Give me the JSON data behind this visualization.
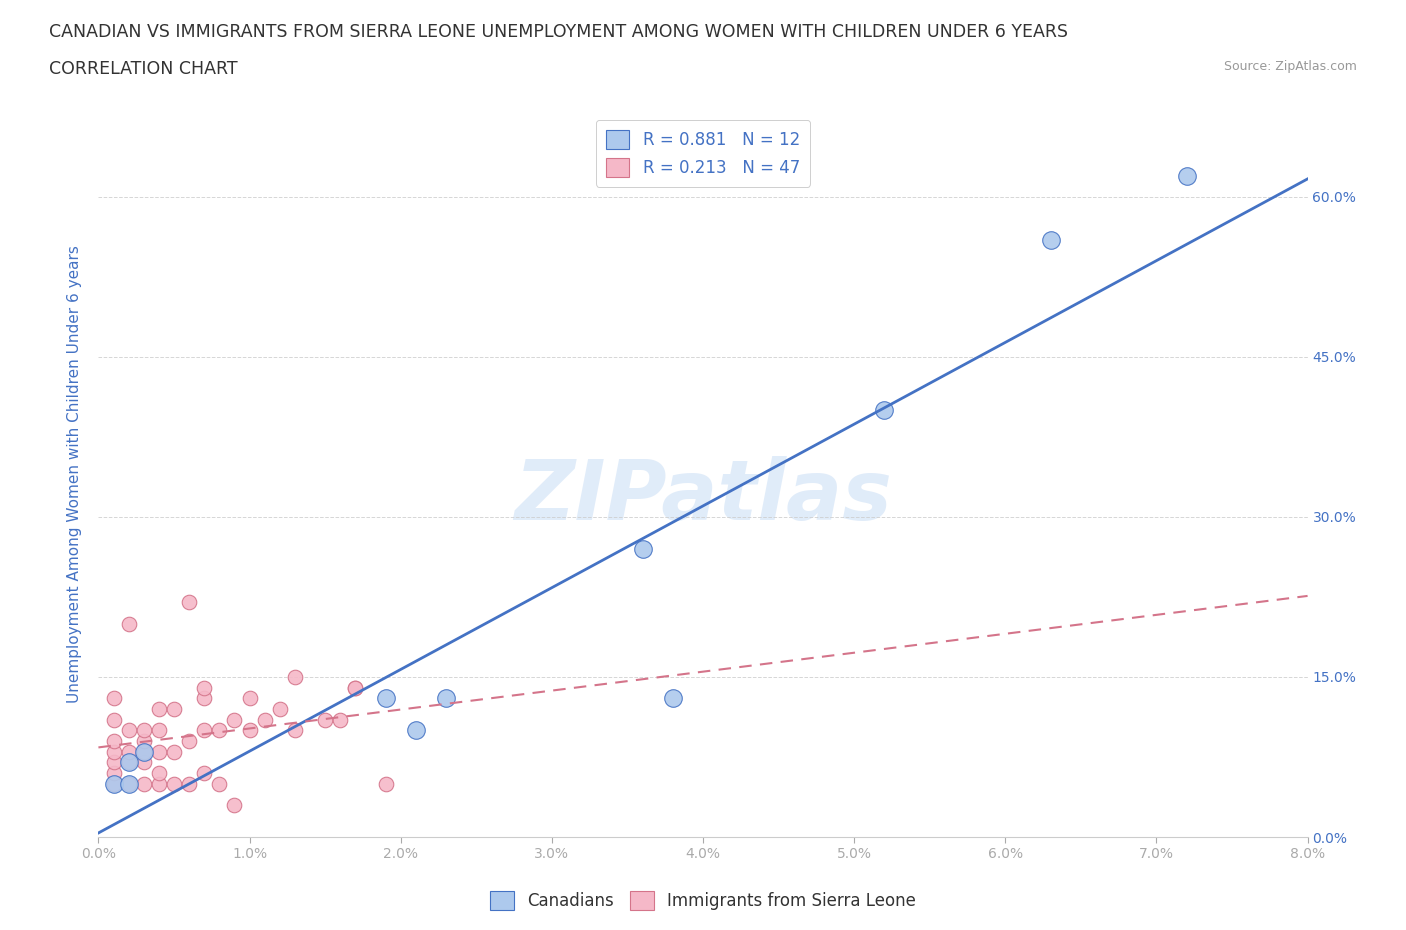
{
  "title_line1": "CANADIAN VS IMMIGRANTS FROM SIERRA LEONE UNEMPLOYMENT AMONG WOMEN WITH CHILDREN UNDER 6 YEARS",
  "title_line2": "CORRELATION CHART",
  "source": "Source: ZipAtlas.com",
  "ylabel": "Unemployment Among Women with Children Under 6 years",
  "watermark": "ZIPatlas",
  "canadians_R": 0.881,
  "canadians_N": 12,
  "sierraleoneans_R": 0.213,
  "sierraleoneans_N": 47,
  "canadians_color": "#adc9ed",
  "sierraleoneans_color": "#f5b8c8",
  "trendline_blue": "#4472c4",
  "trendline_pink": "#d4748a",
  "xlim": [
    0.0,
    0.08
  ],
  "ylim": [
    0.0,
    0.68
  ],
  "xticks": [
    0.0,
    0.01,
    0.02,
    0.03,
    0.04,
    0.05,
    0.06,
    0.07,
    0.08
  ],
  "yticks_right": [
    0.0,
    0.15,
    0.3,
    0.45,
    0.6
  ],
  "canadians_x": [
    0.001,
    0.002,
    0.002,
    0.003,
    0.019,
    0.021,
    0.023,
    0.036,
    0.038,
    0.052,
    0.063,
    0.072
  ],
  "canadians_y": [
    0.05,
    0.05,
    0.07,
    0.08,
    0.13,
    0.1,
    0.13,
    0.27,
    0.13,
    0.4,
    0.56,
    0.62
  ],
  "sierraleoneans_x": [
    0.001,
    0.001,
    0.001,
    0.001,
    0.001,
    0.001,
    0.001,
    0.002,
    0.002,
    0.002,
    0.002,
    0.002,
    0.003,
    0.003,
    0.003,
    0.003,
    0.003,
    0.004,
    0.004,
    0.004,
    0.004,
    0.004,
    0.005,
    0.005,
    0.005,
    0.006,
    0.006,
    0.006,
    0.007,
    0.007,
    0.007,
    0.007,
    0.008,
    0.008,
    0.009,
    0.009,
    0.01,
    0.01,
    0.011,
    0.012,
    0.013,
    0.013,
    0.015,
    0.016,
    0.017,
    0.017,
    0.019
  ],
  "sierraleoneans_y": [
    0.05,
    0.06,
    0.07,
    0.08,
    0.09,
    0.11,
    0.13,
    0.05,
    0.07,
    0.08,
    0.1,
    0.2,
    0.05,
    0.07,
    0.08,
    0.09,
    0.1,
    0.05,
    0.06,
    0.08,
    0.1,
    0.12,
    0.05,
    0.08,
    0.12,
    0.05,
    0.09,
    0.22,
    0.06,
    0.1,
    0.13,
    0.14,
    0.05,
    0.1,
    0.03,
    0.11,
    0.1,
    0.13,
    0.11,
    0.12,
    0.1,
    0.15,
    0.11,
    0.11,
    0.14,
    0.14,
    0.05
  ],
  "background_color": "#ffffff",
  "title_fontsize": 12.5,
  "axis_label_fontsize": 11,
  "tick_fontsize": 10,
  "legend_fontsize": 12,
  "watermark_fontsize": 60,
  "watermark_color": "#c8ddf5",
  "watermark_alpha": 0.55
}
